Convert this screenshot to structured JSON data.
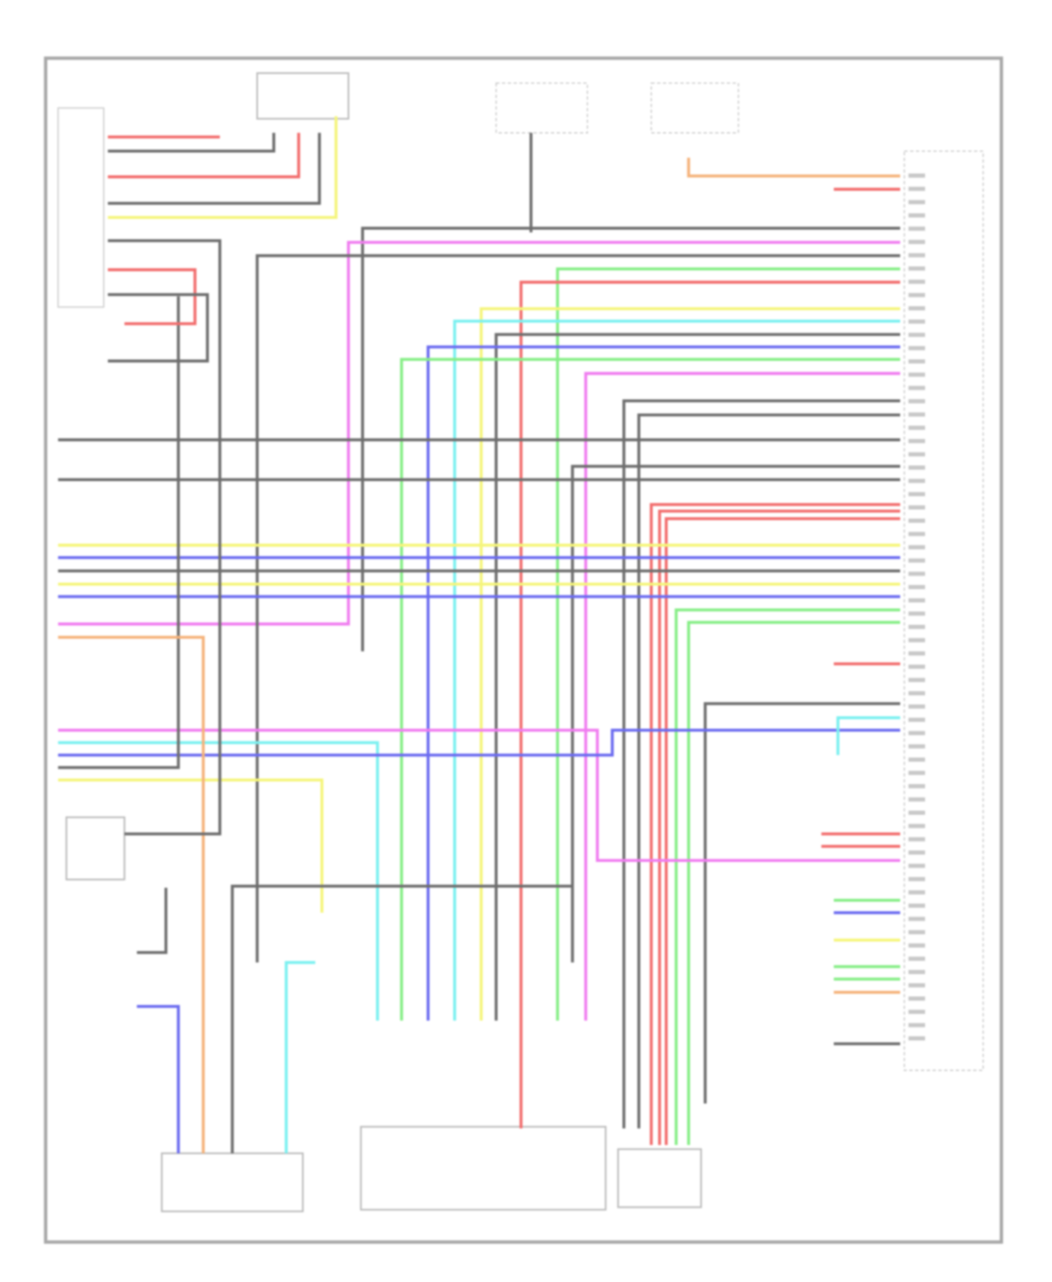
{
  "diagram": {
    "type": "wiring-diagram",
    "text_legible": false,
    "wire_colors": {
      "gray": "#6e6e6e",
      "pink": "#f07cf0",
      "red": "#f26d6d",
      "yellow": "#f5f57a",
      "cyan": "#7af0f0",
      "blue": "#6b6bf0",
      "green": "#86ee86",
      "orange": "#f5b27a",
      "frame": "#a8a8a8"
    }
  }
}
